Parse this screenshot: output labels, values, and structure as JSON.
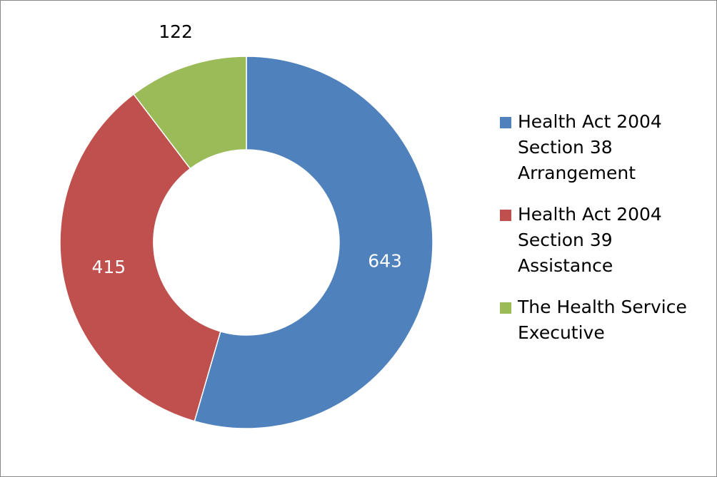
{
  "chart_data": {
    "type": "donut",
    "categories": [
      "Health Act 2004 Section 38 Arrangement",
      "Health Act 2004 Section 39 Assistance",
      "The Health Service Executive"
    ],
    "values": [
      643,
      415,
      122
    ],
    "colors": [
      "#4f81bd",
      "#c0504d",
      "#9bbb59"
    ],
    "legend": "right"
  }
}
